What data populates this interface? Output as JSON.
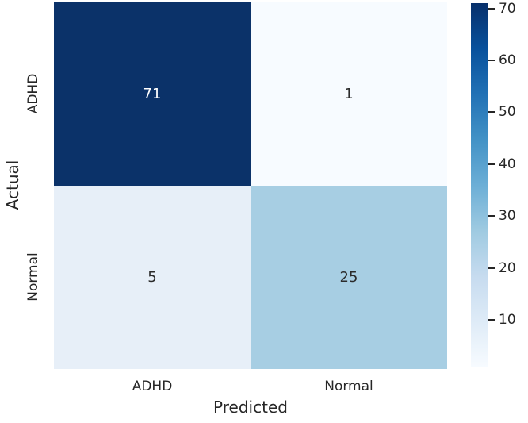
{
  "chart_data": {
    "type": "heatmap",
    "title": "",
    "xlabel": "Predicted",
    "ylabel": "Actual",
    "x_categories": [
      "ADHD",
      "Normal"
    ],
    "y_categories": [
      "ADHD",
      "Normal"
    ],
    "matrix": [
      [
        71,
        1
      ],
      [
        5,
        25
      ]
    ],
    "vmin": 1,
    "vmax": 71,
    "colormap": "Blues",
    "colorbar_ticks": [
      10,
      20,
      30,
      40,
      50,
      60,
      70
    ],
    "colorbar_position": "right",
    "grid": false,
    "annotations": [
      "71",
      "1",
      "5",
      "25"
    ]
  },
  "axes": {
    "xlabel": "Predicted",
    "ylabel": "Actual",
    "x_ticks": [
      "ADHD",
      "Normal"
    ],
    "y_ticks": [
      "ADHD",
      "Normal"
    ]
  },
  "cells": [
    {
      "value": "71",
      "bg": "#0b3269",
      "fg": "#ffffff"
    },
    {
      "value": "1",
      "bg": "#f7fbff",
      "fg": "#2b2b2b"
    },
    {
      "value": "5",
      "bg": "#e7eff8",
      "fg": "#2b2b2b"
    },
    {
      "value": "25",
      "bg": "#a7cee3",
      "fg": "#2b2b2b"
    }
  ],
  "colorbar": {
    "vmin": 1,
    "vmax": 71,
    "tick_values": [
      70,
      60,
      50,
      40,
      30,
      20,
      10
    ],
    "tick_labels": [
      "70",
      "60",
      "50",
      "40",
      "30",
      "20",
      "10"
    ],
    "gradient_stops": [
      "#f7fbff",
      "#deebf7",
      "#c6dbef",
      "#9ecae1",
      "#6baed6",
      "#4292c6",
      "#2171b5",
      "#08519c",
      "#08306b"
    ]
  },
  "colors": {
    "text": "#262626",
    "background": "#ffffff",
    "tick_mark": "#262626"
  }
}
